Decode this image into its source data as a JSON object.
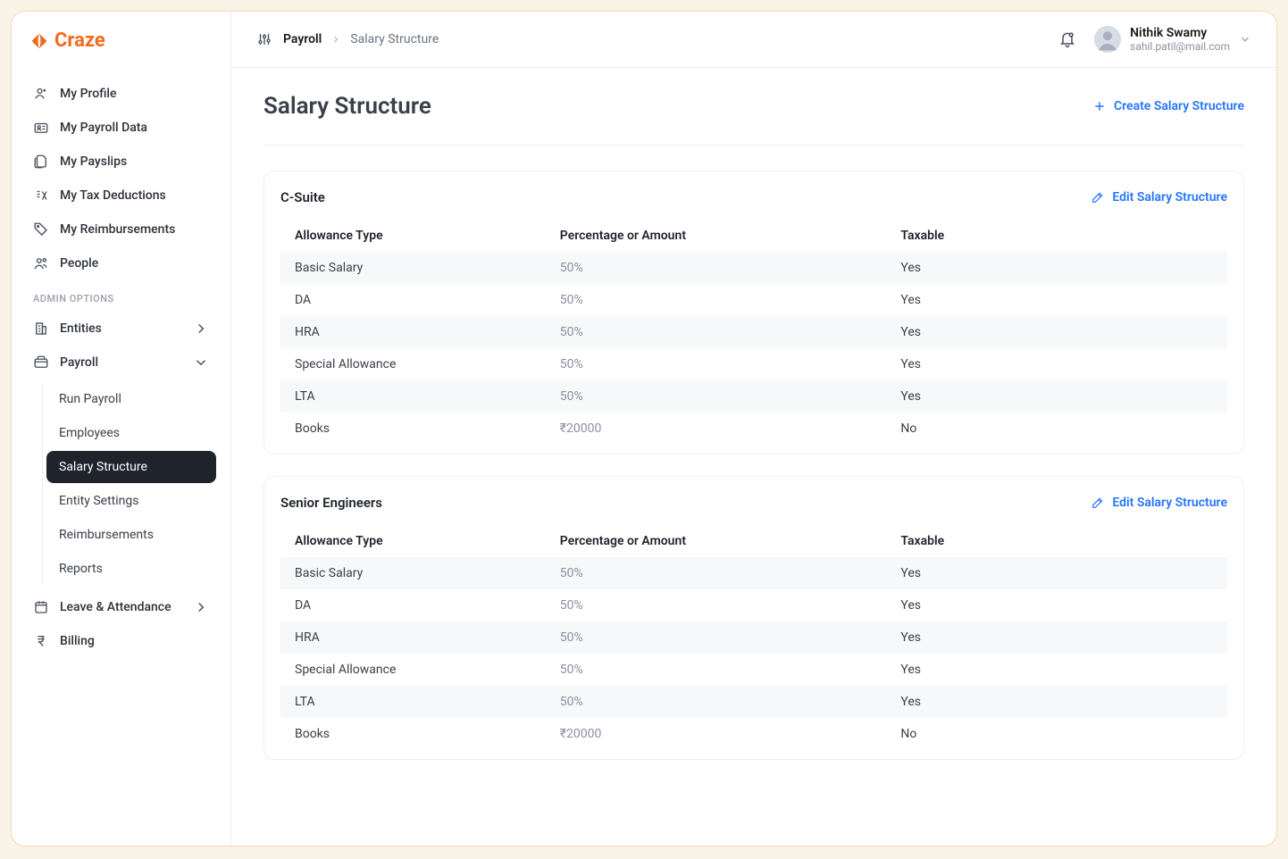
{
  "brand": {
    "name": "Craze",
    "color": "#f26b1d"
  },
  "sidebar": {
    "items": [
      {
        "label": "My Profile"
      },
      {
        "label": "My Payroll Data"
      },
      {
        "label": "My Payslips"
      },
      {
        "label": "My Tax Deductions"
      },
      {
        "label": "My Reimbursements"
      },
      {
        "label": "People"
      }
    ],
    "admin_label": "ADMIN OPTIONS",
    "admin": [
      {
        "label": "Entities"
      },
      {
        "label": "Payroll",
        "expanded": true
      },
      {
        "label": "Leave & Attendance"
      },
      {
        "label": "Billing"
      }
    ],
    "payroll_sub": [
      {
        "label": "Run Payroll"
      },
      {
        "label": "Employees"
      },
      {
        "label": "Salary Structure",
        "active": true
      },
      {
        "label": "Entity Settings"
      },
      {
        "label": "Reimbursements"
      },
      {
        "label": "Reports"
      }
    ]
  },
  "breadcrumb": {
    "main": "Payroll",
    "sub": "Salary Structure"
  },
  "user": {
    "name": "Nithik Swamy",
    "email": "sahil.patil@mail.com"
  },
  "page": {
    "title": "Salary Structure",
    "create_label": "Create Salary Structure",
    "edit_label": "Edit Salary Structure",
    "columns": [
      "Allowance Type",
      "Percentage or Amount",
      "Taxable"
    ]
  },
  "structures": [
    {
      "name": "C-Suite",
      "rows": [
        {
          "type": "Basic Salary",
          "value": "50%",
          "taxable": "Yes"
        },
        {
          "type": "DA",
          "value": "50%",
          "taxable": "Yes"
        },
        {
          "type": "HRA",
          "value": "50%",
          "taxable": "Yes"
        },
        {
          "type": "Special Allowance",
          "value": "50%",
          "taxable": "Yes"
        },
        {
          "type": "LTA",
          "value": "50%",
          "taxable": "Yes"
        },
        {
          "type": "Books",
          "value": "₹20000",
          "taxable": "No"
        }
      ]
    },
    {
      "name": "Senior Engineers",
      "rows": [
        {
          "type": "Basic Salary",
          "value": "50%",
          "taxable": "Yes"
        },
        {
          "type": "DA",
          "value": "50%",
          "taxable": "Yes"
        },
        {
          "type": "HRA",
          "value": "50%",
          "taxable": "Yes"
        },
        {
          "type": "Special Allowance",
          "value": "50%",
          "taxable": "Yes"
        },
        {
          "type": "LTA",
          "value": "50%",
          "taxable": "Yes"
        },
        {
          "type": "Books",
          "value": "₹20000",
          "taxable": "No"
        }
      ]
    }
  ],
  "colors": {
    "accent": "#f26b1d",
    "link": "#2474ff",
    "border": "#eceef1",
    "muted": "#8b90a0",
    "row_alt": "#f6f8fa",
    "nav_active_bg": "#1f232b"
  }
}
